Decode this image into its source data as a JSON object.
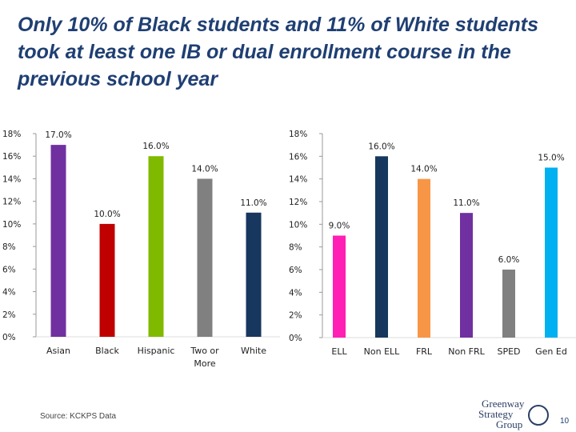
{
  "slide": {
    "title": "Only 10% of Black students and 11% of White students took at least one IB or dual enrollment course in the previous school year",
    "source": "Source: KCKPS Data",
    "logo": {
      "line1": "Greenway",
      "line2": "Strategy",
      "line3": "Group"
    },
    "page_number": "10"
  },
  "chart_data": [
    {
      "type": "bar",
      "categories": [
        "Asian",
        "Black",
        "Hispanic",
        "Two or More",
        "White"
      ],
      "values": [
        17.0,
        10.0,
        16.0,
        14.0,
        11.0
      ],
      "value_labels": [
        "17.0%",
        "10.0%",
        "16.0%",
        "14.0%",
        "11.0%"
      ],
      "colors": [
        "#7030a0",
        "#c00000",
        "#7fba00",
        "#808080",
        "#17375e"
      ],
      "ylim": [
        0,
        18
      ],
      "yticks": [
        "0%",
        "2%",
        "4%",
        "6%",
        "8%",
        "10%",
        "12%",
        "14%",
        "16%",
        "18%"
      ],
      "grid": false
    },
    {
      "type": "bar",
      "categories": [
        "ELL",
        "Non ELL",
        "FRL",
        "Non FRL",
        "SPED",
        "Gen Ed"
      ],
      "values": [
        9.0,
        16.0,
        14.0,
        11.0,
        6.0,
        15.0
      ],
      "value_labels": [
        "9.0%",
        "16.0%",
        "14.0%",
        "11.0%",
        "6.0%",
        "15.0%"
      ],
      "colors": [
        "#ff1fb4",
        "#17375e",
        "#f79646",
        "#7030a0",
        "#808080",
        "#00b0f0"
      ],
      "ylim": [
        0,
        18
      ],
      "yticks": [
        "0%",
        "2%",
        "4%",
        "6%",
        "8%",
        "10%",
        "12%",
        "14%",
        "16%",
        "18%"
      ],
      "grid": false
    }
  ]
}
